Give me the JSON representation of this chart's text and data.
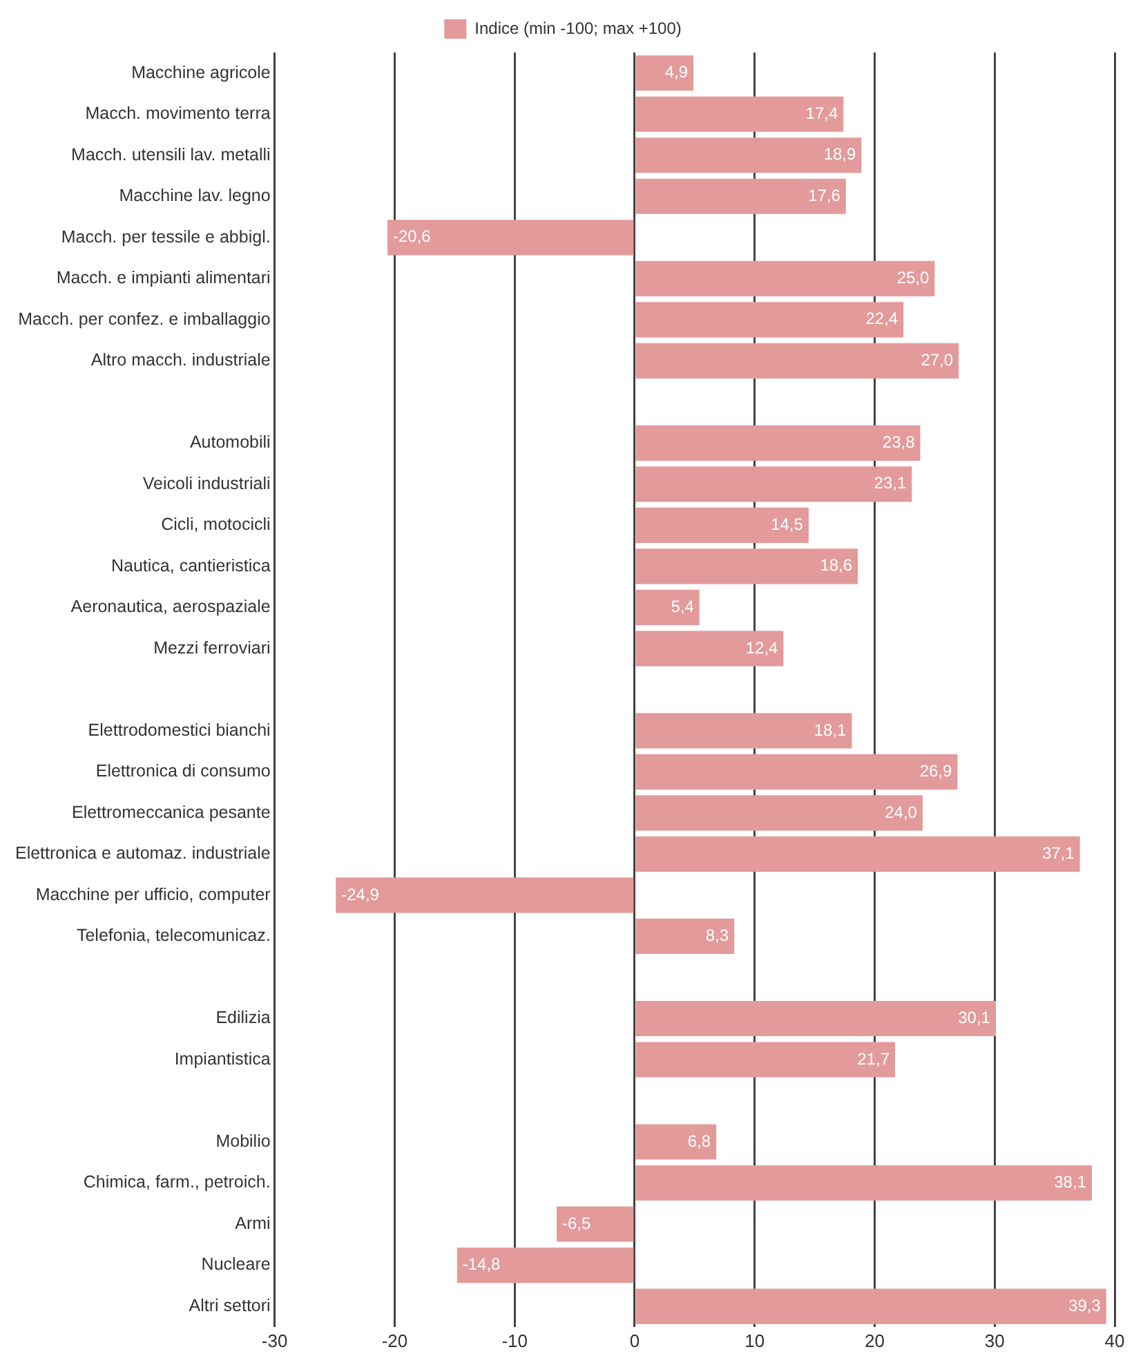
{
  "chart_data": {
    "type": "bar",
    "orientation": "horizontal",
    "categories": [
      "Macchine agricole",
      "Macch. movimento terra",
      "Macch. utensili lav. metalli",
      "Macchine lav. legno",
      "Macch. per tessile e abbigl.",
      "Macch. e impianti alimentari",
      "Macch. per confez. e imballaggio",
      "Altro macch. industriale",
      null,
      "Automobili",
      "Veicoli industriali",
      "Cicli, motocicli",
      "Nautica, cantieristica",
      "Aeronautica, aerospaziale",
      "Mezzi ferroviari",
      null,
      "Elettrodomestici bianchi",
      "Elettronica di consumo",
      "Elettromeccanica pesante",
      "Elettronica e automaz. industriale",
      "Macchine per ufficio, computer",
      "Telefonia, telecomunicaz.",
      null,
      "Edilizia",
      "Impiantistica",
      null,
      "Mobilio",
      "Chimica, farm., petroich.",
      "Armi",
      "Nucleare",
      "Altri settori"
    ],
    "series": [
      {
        "name": "Indice (min -100; max +100)",
        "color": "#e39a9a",
        "values": [
          4.9,
          17.4,
          18.9,
          17.6,
          -20.6,
          25.0,
          22.4,
          27.0,
          null,
          23.8,
          23.1,
          14.5,
          18.6,
          5.4,
          12.4,
          null,
          18.1,
          26.9,
          24.0,
          37.1,
          -24.9,
          8.3,
          null,
          30.1,
          21.7,
          null,
          6.8,
          38.1,
          -6.5,
          -14.8,
          39.3
        ],
        "value_labels": [
          "4,9",
          "17,4",
          "18,9",
          "17,6",
          "-20,6",
          "25,0",
          "22,4",
          "27,0",
          null,
          "23,8",
          "23,1",
          "14,5",
          "18,6",
          "5,4",
          "12,4",
          null,
          "18,1",
          "26,9",
          "24,0",
          "37,1",
          "-24,9",
          "8,3",
          null,
          "30,1",
          "21,7",
          null,
          "6,8",
          "38,1",
          "-6,5",
          "-14,8",
          "39,3"
        ]
      }
    ],
    "xlim": [
      -30,
      40
    ],
    "xticks": [
      -30,
      -20,
      -10,
      0,
      10,
      20,
      30,
      40
    ],
    "grid": "x",
    "legend": "top"
  }
}
